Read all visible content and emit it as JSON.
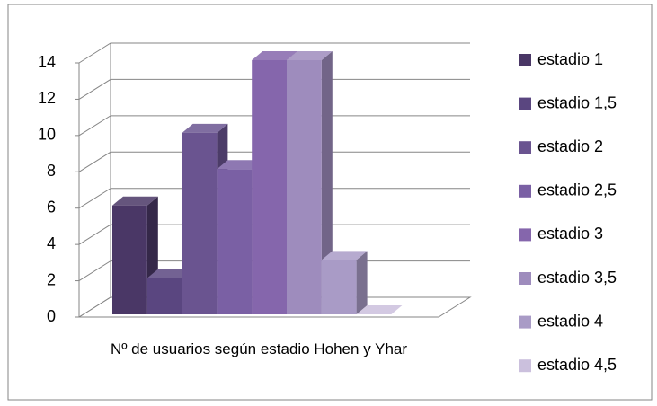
{
  "chart_data": {
    "type": "bar3d",
    "categories": [
      "Nº de usuarios según estadio Hohen y Yhar"
    ],
    "series": [
      {
        "name": "estadio 1",
        "color": "#4a3766",
        "values": [
          6
        ]
      },
      {
        "name": "estadio 1,5",
        "color": "#5a4680",
        "values": [
          2
        ]
      },
      {
        "name": "estadio 2",
        "color": "#6a5490",
        "values": [
          10
        ]
      },
      {
        "name": "estadio 2,5",
        "color": "#7a60a4",
        "values": [
          8
        ]
      },
      {
        "name": "estadio 3",
        "color": "#8566ac",
        "values": [
          14
        ]
      },
      {
        "name": "estadio 3,5",
        "color": "#9e8cbd",
        "values": [
          14
        ]
      },
      {
        "name": "estadio 4",
        "color": "#a99bc6",
        "values": [
          3
        ]
      },
      {
        "name": "estadio 4,5",
        "color": "#cbc0dd",
        "values": [
          0
        ]
      }
    ],
    "ylim": [
      0,
      14
    ],
    "yticks": [
      0,
      2,
      4,
      6,
      8,
      10,
      12,
      14
    ],
    "grid": true,
    "legend": "right"
  }
}
